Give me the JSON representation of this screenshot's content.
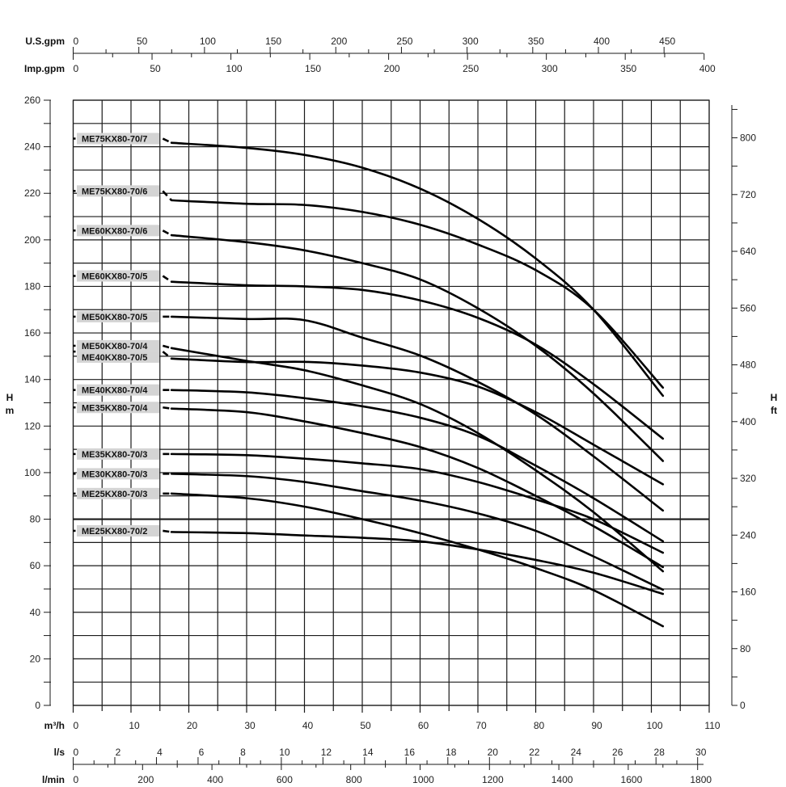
{
  "chart_data": {
    "type": "line",
    "title": "",
    "xlabel": "m³/h",
    "ylabel": "H m",
    "ylabel_right": "H ft",
    "xlim": [
      0,
      110
    ],
    "ylim": [
      0,
      260
    ],
    "grid": true,
    "highlight_h": 80,
    "x_ticks": [
      0,
      10,
      20,
      30,
      40,
      50,
      60,
      70,
      80,
      90,
      100,
      110
    ],
    "y_ticks": [
      0,
      20,
      40,
      60,
      80,
      100,
      120,
      140,
      160,
      180,
      200,
      220,
      240,
      260
    ],
    "y_right_ticks": [
      0,
      80,
      160,
      240,
      320,
      400,
      480,
      560,
      640,
      720,
      800
    ],
    "aux_axes": {
      "us_gpm": {
        "label": "U.S.gpm",
        "ticks": [
          0,
          50,
          100,
          150,
          200,
          250,
          300,
          350,
          400,
          450
        ]
      },
      "imp_gpm": {
        "label": "Imp.gpm",
        "ticks": [
          0,
          50,
          100,
          150,
          200,
          250,
          300,
          350,
          400
        ]
      },
      "ls": {
        "label": "l/s",
        "ticks": [
          0,
          2,
          4,
          6,
          8,
          10,
          12,
          14,
          16,
          18,
          20,
          22,
          24,
          26,
          28,
          30
        ]
      },
      "lmin": {
        "label": "l/min",
        "ticks": [
          0,
          200,
          400,
          600,
          800,
          1000,
          1200,
          1400,
          1600,
          1800
        ]
      }
    },
    "x": [
      17,
      30,
      40,
      50,
      60,
      70,
      80,
      90,
      102
    ],
    "series": [
      {
        "name": "ME75KX80-70/7",
        "shutoff": 243.5,
        "values": [
          241.7,
          239.5,
          236.5,
          231,
          222,
          209,
          192,
          170,
          133
        ]
      },
      {
        "name": "ME75KX80-70/6",
        "shutoff": 221,
        "values": [
          217,
          215.5,
          215,
          212,
          206.5,
          198,
          187,
          170,
          136.5
        ]
      },
      {
        "name": "ME60KX80-70/6",
        "shutoff": 204,
        "values": [
          202,
          199,
          195.5,
          190,
          183,
          170.6,
          154.5,
          134,
          105
        ]
      },
      {
        "name": "ME60KX80-70/5",
        "shutoff": 184.5,
        "values": [
          182,
          180.5,
          180,
          178.5,
          174,
          166.5,
          155,
          138,
          114.6
        ]
      },
      {
        "name": "ME50KX80-70/5",
        "shutoff": 167,
        "values": [
          167,
          166,
          165.5,
          158,
          150.3,
          139,
          125,
          107,
          83.7
        ]
      },
      {
        "name": "ME50KX80-70/4",
        "shutoff": 154.5,
        "values": [
          153.5,
          148,
          144,
          137.5,
          129.5,
          117,
          101,
          83,
          57.6
        ]
      },
      {
        "name": "ME40KX80-70/5",
        "shutoff": 152,
        "values": [
          149,
          147.5,
          147.6,
          146,
          143,
          137,
          126,
          112,
          95
        ]
      },
      {
        "name": "ME40KX80-70/4",
        "shutoff": 135.5,
        "values": [
          135.5,
          134.5,
          132,
          128.5,
          123.6,
          115.8,
          103,
          89,
          70.5
        ]
      },
      {
        "name": "ME35KX80-70/4",
        "shutoff": 128,
        "values": [
          127.5,
          126,
          122,
          117,
          111,
          102,
          90,
          77,
          59.4
        ]
      },
      {
        "name": "ME35KX80-70/3",
        "shutoff": 108,
        "values": [
          108,
          107.5,
          106,
          104,
          101.5,
          96,
          88.5,
          80,
          65.6
        ]
      },
      {
        "name": "ME30KX80-70/3",
        "shutoff": 99.5,
        "values": [
          99.5,
          98.5,
          96,
          92,
          88,
          82.5,
          75,
          64,
          49.7
        ]
      },
      {
        "name": "ME25KX80-70/3",
        "shutoff": 91,
        "values": [
          91,
          89,
          85.4,
          80,
          74,
          67,
          59,
          49.5,
          34
        ]
      },
      {
        "name": "ME25KX80-70/2",
        "shutoff": 75,
        "values": [
          74.5,
          74,
          73,
          72,
          70.5,
          67,
          62.5,
          57,
          47.9
        ]
      }
    ],
    "colors": {
      "curve": "#000000",
      "grid": "#1a1a1a",
      "label_bg": "#d4d4d4"
    }
  },
  "labels": {
    "h_m_1": "H",
    "h_m_2": "m",
    "h_ft_1": "H",
    "h_ft_2": "ft",
    "m3h": "m³/h"
  }
}
